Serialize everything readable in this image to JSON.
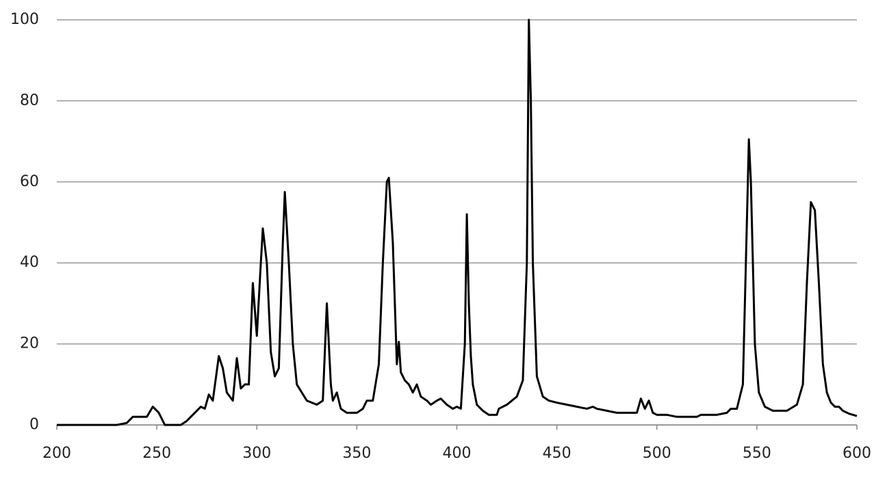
{
  "chart_data": {
    "type": "line",
    "x": [
      200,
      230,
      235,
      238,
      242,
      245,
      248,
      251,
      254,
      262,
      265,
      270,
      272,
      274,
      276,
      278,
      281,
      283,
      285,
      288,
      290,
      292,
      294,
      296,
      298,
      300,
      302,
      303,
      305,
      307,
      309,
      311,
      313,
      314,
      316,
      318,
      320,
      325,
      330,
      333,
      335,
      337,
      338,
      340,
      342,
      345,
      350,
      353,
      355,
      358,
      361,
      363,
      365,
      366,
      368,
      370,
      371,
      372,
      374,
      376,
      378,
      380,
      382,
      385,
      387,
      390,
      392,
      395,
      398,
      400,
      402,
      404,
      405,
      406,
      407,
      408,
      410,
      413,
      416,
      420,
      421,
      425,
      430,
      433,
      435,
      436,
      437,
      438,
      440,
      443,
      446,
      450,
      455,
      460,
      465,
      468,
      470,
      475,
      480,
      490,
      492,
      494,
      496,
      498,
      500,
      505,
      510,
      515,
      520,
      522,
      530,
      535,
      537,
      540,
      543,
      545,
      546,
      547,
      549,
      551,
      554,
      558,
      565,
      570,
      573,
      575,
      577,
      579,
      581,
      583,
      585,
      587,
      589,
      591,
      593,
      596,
      600
    ],
    "series": [
      {
        "color": "#000000",
        "values": [
          0,
          0,
          0.5,
          2,
          2,
          2,
          4.5,
          3,
          0,
          0,
          1,
          3.5,
          4.5,
          4,
          7.5,
          6,
          17,
          14,
          8,
          6,
          16.5,
          9,
          10,
          10,
          35,
          22,
          40,
          48.5,
          40,
          18,
          12,
          14,
          45,
          57.5,
          40,
          20,
          10,
          6,
          5,
          6,
          30,
          10,
          6,
          8,
          4,
          3,
          3,
          4,
          6,
          6,
          15,
          40,
          60,
          61,
          45,
          15,
          20.5,
          13,
          11,
          10,
          8,
          10,
          7,
          6,
          5,
          6,
          6.5,
          5,
          4,
          4.5,
          4,
          20,
          52,
          30,
          17,
          10,
          5,
          3.5,
          2.5,
          2.5,
          4,
          5,
          7,
          11,
          40,
          100,
          80,
          40,
          12,
          7,
          6,
          5.5,
          5,
          4.5,
          4,
          4.5,
          4,
          3.5,
          3,
          3,
          6.5,
          4,
          6,
          3,
          2.5,
          2.5,
          2,
          2,
          2,
          2.5,
          2.5,
          3,
          4,
          4,
          10,
          50,
          70.5,
          60,
          20,
          8,
          4.5,
          3.5,
          3.5,
          5,
          10,
          35,
          55,
          53,
          35,
          15,
          8,
          5.5,
          4.5,
          4.5,
          3.5,
          2.8,
          2.2
        ]
      }
    ],
    "xlim": [
      200,
      600
    ],
    "xticks": [
      200,
      250,
      300,
      350,
      400,
      450,
      500,
      550,
      600
    ],
    "ylim": [
      0,
      100
    ],
    "yticks": [
      0,
      20,
      40,
      60,
      80,
      100
    ],
    "grid": true
  }
}
